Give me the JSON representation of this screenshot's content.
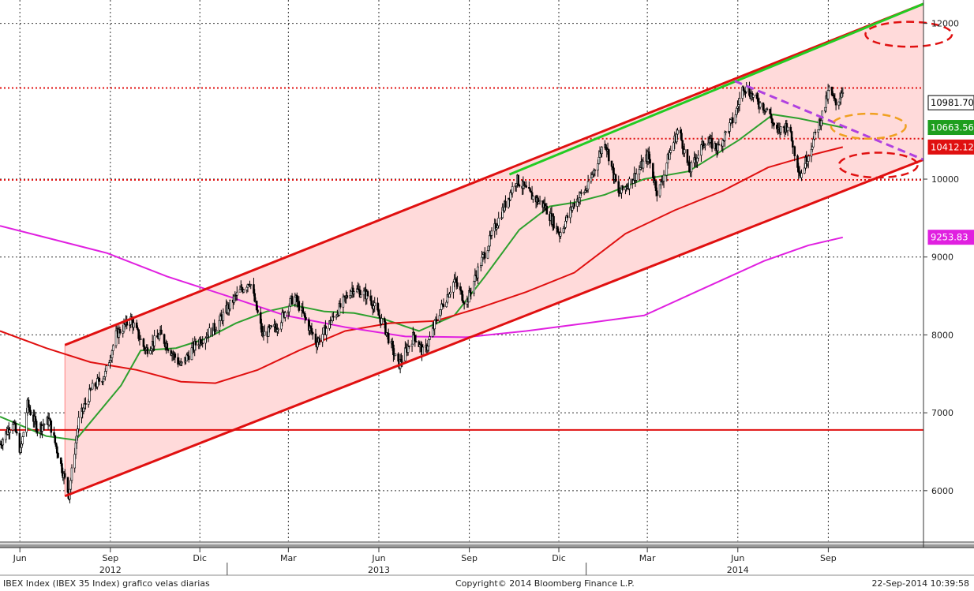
{
  "chart_data": {
    "type": "candlestick",
    "instrument": "IBEX Index (IBEX 35 Index) grafico velas diarias",
    "y_axis": {
      "ticks": [
        6000,
        7000,
        8000,
        9000,
        10000,
        12000
      ],
      "range": [
        5350,
        12300
      ],
      "position": "right",
      "grid": true
    },
    "x_axis": {
      "month_labels": [
        "Jun",
        "Sep",
        "Dic",
        "Mar",
        "Jun",
        "Sep",
        "Dic",
        "Mar",
        "Jun",
        "Sep"
      ],
      "year_labels": [
        "2012",
        "2013",
        "2014"
      ],
      "range": [
        "2012-05-15",
        "2014-12-10"
      ]
    },
    "price_tags": [
      {
        "label": "10981.70",
        "value": 10981.7,
        "color": "#000000"
      },
      {
        "label": "10663.56",
        "value": 10663.56,
        "color": "#1e9e1e"
      },
      {
        "label": "10412.12",
        "value": 10412.12,
        "color": "#e01010"
      },
      {
        "label": "9253.83",
        "value": 9253.83,
        "color": "#e020e0"
      }
    ],
    "price_path": [
      [
        "2012-05-15",
        6600
      ],
      [
        "2012-05-28",
        6900
      ],
      [
        "2012-06-05",
        6500
      ],
      [
        "2012-06-12",
        7100
      ],
      [
        "2012-06-22",
        6800
      ],
      [
        "2012-07-04",
        6900
      ],
      [
        "2012-07-24",
        5950
      ],
      [
        "2012-08-03",
        6900
      ],
      [
        "2012-08-16",
        7300
      ],
      [
        "2012-08-30",
        7500
      ],
      [
        "2012-09-10",
        8000
      ],
      [
        "2012-09-25",
        8200
      ],
      [
        "2012-10-10",
        7800
      ],
      [
        "2012-10-25",
        8000
      ],
      [
        "2012-11-15",
        7600
      ],
      [
        "2012-12-01",
        7900
      ],
      [
        "2012-12-20",
        8100
      ],
      [
        "2013-01-10",
        8500
      ],
      [
        "2013-01-24",
        8700
      ],
      [
        "2013-02-06",
        8000
      ],
      [
        "2013-02-20",
        8100
      ],
      [
        "2013-03-10",
        8500
      ],
      [
        "2013-04-02",
        7900
      ],
      [
        "2013-04-18",
        8200
      ],
      [
        "2013-05-08",
        8600
      ],
      [
        "2013-05-25",
        8500
      ],
      [
        "2013-06-10",
        8100
      ],
      [
        "2013-06-24",
        7600
      ],
      [
        "2013-07-10",
        8000
      ],
      [
        "2013-07-20",
        7750
      ],
      [
        "2013-08-05",
        8300
      ],
      [
        "2013-08-20",
        8700
      ],
      [
        "2013-09-01",
        8400
      ],
      [
        "2013-09-12",
        8800
      ],
      [
        "2013-10-01",
        9400
      ],
      [
        "2013-10-22",
        10000
      ],
      [
        "2013-11-05",
        9800
      ],
      [
        "2013-11-20",
        9650
      ],
      [
        "2013-12-05",
        9300
      ],
      [
        "2013-12-20",
        9700
      ],
      [
        "2014-01-03",
        9900
      ],
      [
        "2014-01-20",
        10500
      ],
      [
        "2014-02-03",
        9800
      ],
      [
        "2014-02-20",
        10050
      ],
      [
        "2014-03-05",
        10300
      ],
      [
        "2014-03-15",
        9800
      ],
      [
        "2014-03-26",
        10300
      ],
      [
        "2014-04-05",
        10650
      ],
      [
        "2014-04-16",
        10100
      ],
      [
        "2014-05-02",
        10500
      ],
      [
        "2014-05-15",
        10400
      ],
      [
        "2014-06-01",
        10800
      ],
      [
        "2014-06-10",
        11200
      ],
      [
        "2014-06-24",
        11000
      ],
      [
        "2014-07-04",
        10900
      ],
      [
        "2014-07-14",
        10600
      ],
      [
        "2014-07-25",
        10700
      ],
      [
        "2014-08-07",
        10050
      ],
      [
        "2014-08-20",
        10500
      ],
      [
        "2014-08-31",
        10900
      ],
      [
        "2014-09-05",
        11150
      ],
      [
        "2014-09-12",
        10950
      ],
      [
        "2014-09-19",
        11150
      ]
    ],
    "moving_averages": [
      {
        "color": "#2ea02e",
        "points": [
          [
            "2012-05-15",
            6950
          ],
          [
            "2012-07-01",
            6700
          ],
          [
            "2012-07-31",
            6650
          ],
          [
            "2012-09-15",
            7350
          ],
          [
            "2012-10-05",
            7800
          ],
          [
            "2012-11-10",
            7830
          ],
          [
            "2012-12-10",
            7950
          ],
          [
            "2013-01-10",
            8150
          ],
          [
            "2013-02-10",
            8300
          ],
          [
            "2013-03-10",
            8380
          ],
          [
            "2013-04-10",
            8300
          ],
          [
            "2013-05-10",
            8280
          ],
          [
            "2013-06-10",
            8200
          ],
          [
            "2013-07-15",
            8050
          ],
          [
            "2013-08-20",
            8250
          ],
          [
            "2013-09-20",
            8750
          ],
          [
            "2013-10-25",
            9350
          ],
          [
            "2013-11-25",
            9650
          ],
          [
            "2013-12-20",
            9700
          ],
          [
            "2014-01-20",
            9800
          ],
          [
            "2014-03-01",
            10000
          ],
          [
            "2014-04-15",
            10100
          ],
          [
            "2014-06-05",
            10500
          ],
          [
            "2014-07-10",
            10830
          ],
          [
            "2014-08-05",
            10780
          ],
          [
            "2014-09-19",
            10663
          ]
        ]
      },
      {
        "color": "#e01010",
        "points": [
          [
            "2012-05-15",
            8050
          ],
          [
            "2012-07-01",
            7830
          ],
          [
            "2012-08-15",
            7650
          ],
          [
            "2012-10-01",
            7550
          ],
          [
            "2012-11-15",
            7400
          ],
          [
            "2012-12-20",
            7380
          ],
          [
            "2013-02-01",
            7550
          ],
          [
            "2013-03-15",
            7800
          ],
          [
            "2013-05-01",
            8050
          ],
          [
            "2013-06-15",
            8150
          ],
          [
            "2013-08-01",
            8180
          ],
          [
            "2013-09-15",
            8350
          ],
          [
            "2013-11-01",
            8550
          ],
          [
            "2013-12-20",
            8800
          ],
          [
            "2014-02-10",
            9300
          ],
          [
            "2014-04-01",
            9600
          ],
          [
            "2014-05-20",
            9850
          ],
          [
            "2014-07-05",
            10150
          ],
          [
            "2014-08-15",
            10300
          ],
          [
            "2014-09-19",
            10412
          ]
        ]
      },
      {
        "color": "#e020e0",
        "points": [
          [
            "2012-05-15",
            9400
          ],
          [
            "2012-07-01",
            9250
          ],
          [
            "2012-09-01",
            9050
          ],
          [
            "2012-11-01",
            8750
          ],
          [
            "2013-01-01",
            8500
          ],
          [
            "2013-03-01",
            8250
          ],
          [
            "2013-05-01",
            8100
          ],
          [
            "2013-07-01",
            7980
          ],
          [
            "2013-09-01",
            7970
          ],
          [
            "2013-11-01",
            8050
          ],
          [
            "2014-01-01",
            8150
          ],
          [
            "2014-03-01",
            8250
          ],
          [
            "2014-05-01",
            8600
          ],
          [
            "2014-07-01",
            8950
          ],
          [
            "2014-08-15",
            9150
          ],
          [
            "2014-09-19",
            9253
          ]
        ]
      }
    ],
    "horizontal_lines": [
      {
        "value": 11170,
        "color": "#e01010",
        "style": "dotted",
        "from": "2012-05-15"
      },
      {
        "value": 10520,
        "color": "#e01010",
        "style": "dotted",
        "from": "2014-01-01"
      },
      {
        "value": 9990,
        "color": "#e01010",
        "style": "dotted",
        "from": "2012-05-15"
      },
      {
        "value": 6780,
        "color": "#e01010",
        "style": "solid",
        "from": "2012-05-15"
      }
    ],
    "channel": {
      "fill": "#ffdada",
      "upper": [
        [
          "2012-07-20",
          7870
        ],
        [
          "2014-12-10",
          12250
        ]
      ],
      "lower": [
        [
          "2012-07-20",
          5930
        ],
        [
          "2014-12-10",
          10250
        ]
      ]
    },
    "trendlines": [
      {
        "color": "#22cc22",
        "style": "solid",
        "points": [
          [
            "2013-10-15",
            10060
          ],
          [
            "2014-12-10",
            12250
          ]
        ]
      },
      {
        "color": "#b040e0",
        "style": "dashed",
        "points": [
          [
            "2014-06-01",
            11260
          ],
          [
            "2014-12-10",
            10250
          ]
        ]
      }
    ],
    "ellipses": [
      {
        "color": "#e01010",
        "cx": "2014-11-25",
        "cy": 11860,
        "rx_days": 44,
        "ry": 160
      },
      {
        "color": "#f0a020",
        "cx": "2014-10-15",
        "cy": 10680,
        "rx_days": 38,
        "ry": 160
      },
      {
        "color": "#e01010",
        "cx": "2014-10-25",
        "cy": 10180,
        "rx_days": 40,
        "ry": 160
      }
    ]
  },
  "footer": {
    "left": "IBEX Index (IBEX 35 Index) grafico velas diarias",
    "center": "Copyright© 2014 Bloomberg Finance L.P.",
    "right": "22-Sep-2014 10:39:58"
  }
}
